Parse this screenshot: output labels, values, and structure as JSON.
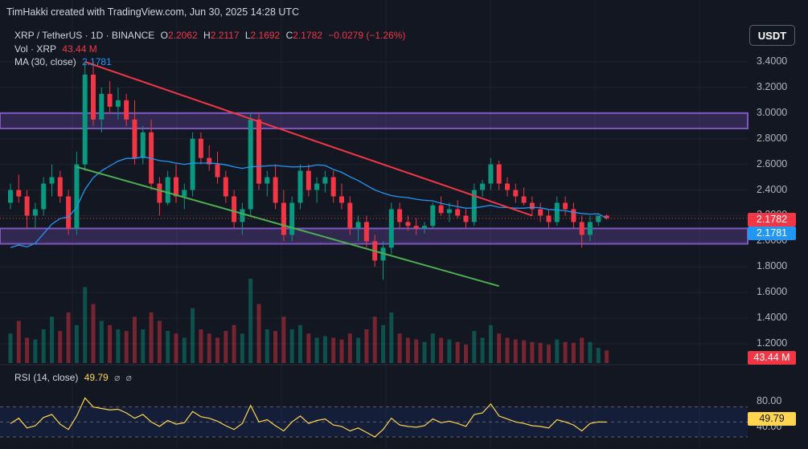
{
  "credit": "TimHakki created with TradingView.com, Jun 30, 2025 14:28 UTC",
  "header": {
    "symbol": "XRP / TetherUS · 1D · BINANCE",
    "o_label": "O",
    "o_value": "2.2062",
    "h_label": "H",
    "h_value": "2.2117",
    "l_label": "L",
    "l_value": "2.1692",
    "c_label": "C",
    "c_value": "2.1782",
    "change": "−0.0279 (−1.26%)",
    "vol_label": "Vol · XRP",
    "vol_value": "43.44 M",
    "ma_label": "MA (30, close)",
    "ma_value": "2.1781"
  },
  "currency_button": "USDT",
  "rsi_header": {
    "label": "RSI (14, close)",
    "value": "49.79",
    "icon1": "⌀",
    "icon2": "⌀"
  },
  "price_axis": [
    "3.4000",
    "3.2000",
    "3.0000",
    "2.8000",
    "2.6000",
    "2.4000",
    "2.2000",
    "2.0000",
    "1.8000",
    "1.6000",
    "1.4000",
    "1.2000"
  ],
  "rsi_axis": [
    "80.00",
    "40.00"
  ],
  "tags": {
    "close": "2.1782",
    "ma": "2.1781",
    "volume": "43.44 M",
    "rsi": "49.79"
  },
  "colors": {
    "up": "#089981",
    "down": "#f23645",
    "ma": "#2196f3",
    "zone": "#7e57c2",
    "rsi": "#ffd54f",
    "arrow": "#ffeb3b",
    "resistance": "#f23645",
    "support": "#4caf50"
  },
  "chart_data": {
    "type": "candlestick",
    "title": "XRP / TetherUS · 1D · BINANCE",
    "ylim": [
      1.1,
      3.5
    ],
    "rsi_ylim": [
      30,
      90
    ],
    "zones": [
      [
        2.88,
        3.0
      ],
      [
        1.98,
        2.1
      ]
    ],
    "trendlines": [
      {
        "name": "resistance",
        "from": [
          9,
          3.4
        ],
        "to": [
          63,
          2.2
        ]
      },
      {
        "name": "support",
        "from": [
          8,
          2.58
        ],
        "to": [
          59,
          1.65
        ]
      }
    ],
    "projection": [
      [
        101,
        2.2
      ],
      [
        108,
        2.98
      ],
      [
        116,
        2.0
      ],
      [
        121,
        3.45
      ]
    ],
    "ma_last": 2.1781,
    "close_last": 2.1782,
    "rsi_last": 49.79,
    "candles": [
      [
        2.3,
        2.45,
        2.25,
        2.4
      ],
      [
        2.4,
        2.52,
        2.3,
        2.35
      ],
      [
        2.35,
        2.4,
        2.1,
        2.2
      ],
      [
        2.2,
        2.3,
        2.1,
        2.25
      ],
      [
        2.25,
        2.5,
        2.2,
        2.45
      ],
      [
        2.45,
        2.6,
        2.35,
        2.5
      ],
      [
        2.5,
        2.55,
        2.3,
        2.35
      ],
      [
        2.35,
        2.4,
        2.05,
        2.1
      ],
      [
        2.1,
        2.7,
        2.05,
        2.6
      ],
      [
        2.6,
        3.4,
        2.55,
        3.3
      ],
      [
        3.3,
        3.4,
        2.9,
        2.95
      ],
      [
        2.95,
        3.2,
        2.85,
        3.15
      ],
      [
        3.15,
        3.25,
        3.0,
        3.05
      ],
      [
        3.05,
        3.2,
        2.95,
        3.1
      ],
      [
        3.1,
        3.15,
        2.9,
        2.95
      ],
      [
        2.95,
        3.1,
        2.6,
        2.65
      ],
      [
        2.65,
        2.9,
        2.6,
        2.85
      ],
      [
        2.85,
        2.95,
        2.4,
        2.45
      ],
      [
        2.45,
        2.5,
        2.2,
        2.3
      ],
      [
        2.3,
        2.55,
        2.28,
        2.5
      ],
      [
        2.5,
        2.6,
        2.3,
        2.35
      ],
      [
        2.35,
        2.45,
        2.25,
        2.4
      ],
      [
        2.4,
        2.85,
        2.35,
        2.8
      ],
      [
        2.8,
        2.85,
        2.6,
        2.65
      ],
      [
        2.65,
        2.75,
        2.55,
        2.6
      ],
      [
        2.6,
        2.7,
        2.45,
        2.5
      ],
      [
        2.5,
        2.55,
        2.3,
        2.35
      ],
      [
        2.35,
        2.4,
        2.1,
        2.15
      ],
      [
        2.15,
        2.3,
        2.05,
        2.25
      ],
      [
        2.25,
        3.0,
        2.2,
        2.95
      ],
      [
        2.95,
        3.0,
        2.4,
        2.45
      ],
      [
        2.45,
        2.55,
        2.35,
        2.5
      ],
      [
        2.5,
        2.6,
        2.25,
        2.3
      ],
      [
        2.3,
        2.4,
        2.0,
        2.05
      ],
      [
        2.05,
        2.35,
        2.0,
        2.3
      ],
      [
        2.3,
        2.6,
        2.25,
        2.55
      ],
      [
        2.55,
        2.6,
        2.35,
        2.4
      ],
      [
        2.4,
        2.5,
        2.3,
        2.45
      ],
      [
        2.45,
        2.55,
        2.38,
        2.5
      ],
      [
        2.5,
        2.55,
        2.3,
        2.35
      ],
      [
        2.35,
        2.45,
        2.25,
        2.3
      ],
      [
        2.3,
        2.35,
        2.05,
        2.1
      ],
      [
        2.1,
        2.2,
        2.0,
        2.15
      ],
      [
        2.15,
        2.2,
        1.95,
        2.0
      ],
      [
        2.0,
        2.05,
        1.8,
        1.85
      ],
      [
        1.85,
        2.0,
        1.7,
        1.95
      ],
      [
        1.95,
        2.3,
        1.9,
        2.25
      ],
      [
        2.25,
        2.3,
        2.1,
        2.15
      ],
      [
        2.15,
        2.2,
        2.08,
        2.12
      ],
      [
        2.12,
        2.18,
        2.05,
        2.1
      ],
      [
        2.1,
        2.15,
        2.06,
        2.12
      ],
      [
        2.12,
        2.3,
        2.1,
        2.28
      ],
      [
        2.28,
        2.35,
        2.2,
        2.22
      ],
      [
        2.22,
        2.3,
        2.15,
        2.25
      ],
      [
        2.25,
        2.32,
        2.18,
        2.2
      ],
      [
        2.2,
        2.25,
        2.1,
        2.15
      ],
      [
        2.15,
        2.45,
        2.12,
        2.4
      ],
      [
        2.4,
        2.48,
        2.35,
        2.45
      ],
      [
        2.45,
        2.65,
        2.4,
        2.6
      ],
      [
        2.6,
        2.63,
        2.4,
        2.45
      ],
      [
        2.45,
        2.5,
        2.35,
        2.4
      ],
      [
        2.4,
        2.45,
        2.3,
        2.35
      ],
      [
        2.35,
        2.42,
        2.28,
        2.3
      ],
      [
        2.3,
        2.35,
        2.2,
        2.25
      ],
      [
        2.25,
        2.3,
        2.15,
        2.2
      ],
      [
        2.2,
        2.25,
        2.1,
        2.15
      ],
      [
        2.15,
        2.35,
        2.12,
        2.3
      ],
      [
        2.3,
        2.35,
        2.2,
        2.25
      ],
      [
        2.25,
        2.3,
        2.1,
        2.15
      ],
      [
        2.15,
        2.2,
        1.95,
        2.05
      ],
      [
        2.05,
        2.2,
        2.0,
        2.15
      ],
      [
        2.15,
        2.2,
        2.12,
        2.2
      ],
      [
        2.2,
        2.21,
        2.17,
        2.18
      ]
    ],
    "volume": [
      0.35,
      0.5,
      0.3,
      0.28,
      0.4,
      0.55,
      0.38,
      0.6,
      0.45,
      0.9,
      0.7,
      0.5,
      0.45,
      0.4,
      0.38,
      0.55,
      0.4,
      0.6,
      0.5,
      0.38,
      0.35,
      0.3,
      0.65,
      0.4,
      0.35,
      0.3,
      0.38,
      0.45,
      0.35,
      1.0,
      0.7,
      0.4,
      0.38,
      0.55,
      0.4,
      0.45,
      0.35,
      0.3,
      0.32,
      0.3,
      0.28,
      0.35,
      0.3,
      0.4,
      0.55,
      0.45,
      0.6,
      0.35,
      0.3,
      0.28,
      0.25,
      0.35,
      0.3,
      0.28,
      0.25,
      0.22,
      0.38,
      0.3,
      0.45,
      0.35,
      0.3,
      0.28,
      0.27,
      0.25,
      0.24,
      0.22,
      0.28,
      0.25,
      0.24,
      0.3,
      0.25,
      0.18,
      0.15
    ],
    "rsi": [
      48,
      55,
      42,
      45,
      56,
      60,
      47,
      40,
      58,
      82,
      70,
      68,
      66,
      67,
      62,
      55,
      60,
      50,
      44,
      52,
      47,
      49,
      64,
      57,
      55,
      51,
      45,
      40,
      48,
      72,
      50,
      53,
      45,
      38,
      50,
      58,
      48,
      52,
      54,
      46,
      44,
      38,
      42,
      36,
      30,
      40,
      55,
      46,
      44,
      43,
      45,
      54,
      49,
      51,
      48,
      44,
      60,
      62,
      74,
      58,
      54,
      50,
      48,
      45,
      44,
      42,
      53,
      50,
      46,
      38,
      48,
      50,
      49.79
    ]
  }
}
